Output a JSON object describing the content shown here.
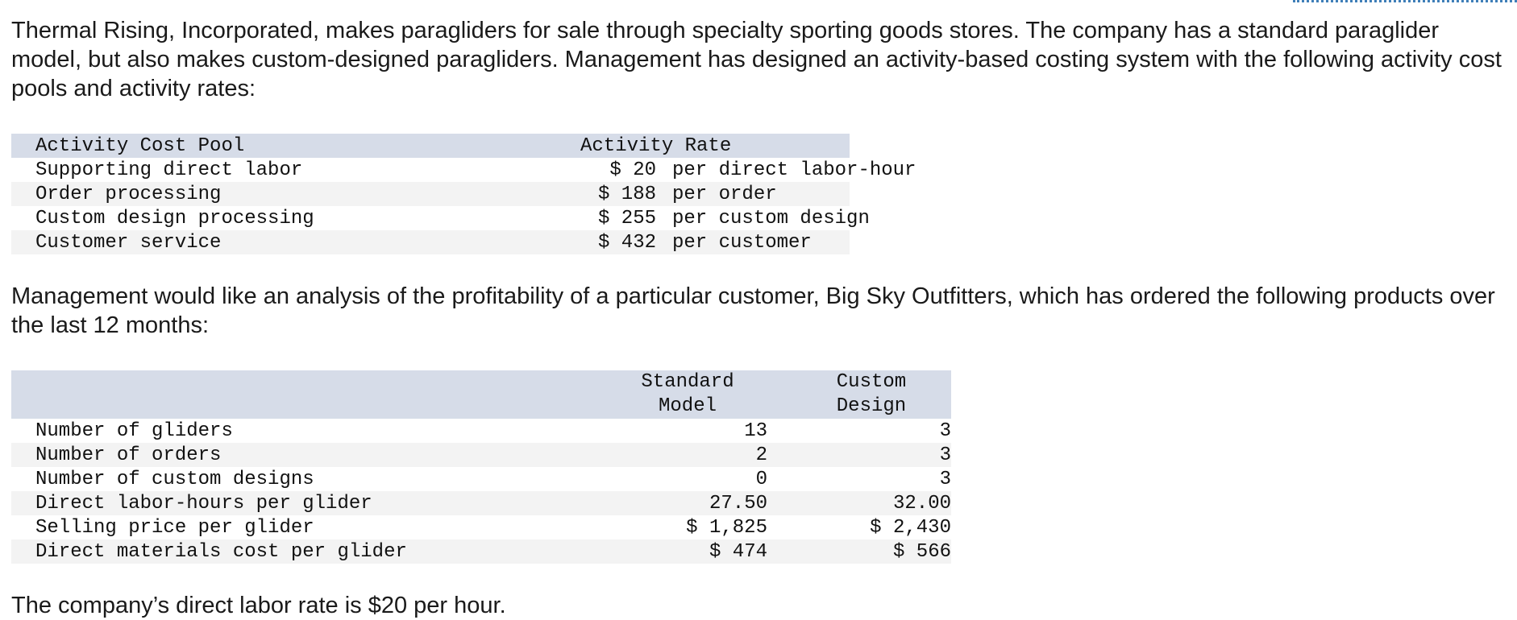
{
  "intro": "Thermal Rising, Incorporated, makes paragliders for sale through specialty sporting goods stores. The company has a standard paraglider model, but also makes custom-designed paragliders. Management has designed an activity-based costing system with the following activity cost pools and activity rates:",
  "rates_table": {
    "header_pool": "Activity Cost Pool",
    "header_rate": "Activity Rate",
    "rows": [
      {
        "pool": "Supporting direct labor",
        "amount": "$ 20",
        "unit": "per direct labor-hour"
      },
      {
        "pool": "Order processing",
        "amount": "$ 188",
        "unit": "per order"
      },
      {
        "pool": "Custom design processing",
        "amount": "$ 255",
        "unit": "per custom design"
      },
      {
        "pool": "Customer service",
        "amount": "$ 432",
        "unit": "per customer"
      }
    ]
  },
  "middle": "Management would like an analysis of the profitability of a particular customer, Big Sky Outfitters, which has ordered the following products over the last 12 months:",
  "products_table": {
    "header_standard_1": "Standard",
    "header_standard_2": "Model",
    "header_custom_1": "Custom",
    "header_custom_2": "Design",
    "rows": [
      {
        "label": "Number of gliders",
        "standard": "13",
        "custom": "3"
      },
      {
        "label": "Number of orders",
        "standard": "2",
        "custom": "3"
      },
      {
        "label": "Number of custom designs",
        "standard": "0",
        "custom": "3"
      },
      {
        "label": "Direct labor-hours per glider",
        "standard": "27.50",
        "custom": "32.00"
      },
      {
        "label": "Selling price per glider",
        "standard": "$ 1,825",
        "custom": "$ 2,430"
      },
      {
        "label": "Direct materials cost per glider",
        "standard": "$ 474",
        "custom": "$ 566"
      }
    ]
  },
  "footer": "The company’s direct labor rate is $20 per hour."
}
